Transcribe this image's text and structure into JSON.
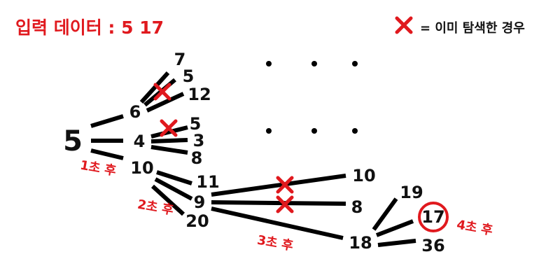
{
  "title": "입력 데이터 : 5 17",
  "legend": {
    "icon": "red-x-icon",
    "text": "= 이미 탐색한 경우"
  },
  "colors": {
    "accent": "#e0191e",
    "text": "#111111"
  },
  "tree": {
    "root": "5",
    "level1": [
      "6",
      "4",
      "10"
    ],
    "level2_from_6": [
      "7",
      "5",
      "12"
    ],
    "level2_from_4": [
      "5",
      "3",
      "8"
    ],
    "level2_from_10": [
      "11",
      "9",
      "20"
    ],
    "level3_from_9": [
      "10",
      "8",
      "18"
    ],
    "level4_from_18": [
      "19",
      "17",
      "36"
    ],
    "target": "17"
  },
  "time_labels": [
    "1초 후",
    "2초 후",
    "3초 후",
    "4초 후"
  ]
}
